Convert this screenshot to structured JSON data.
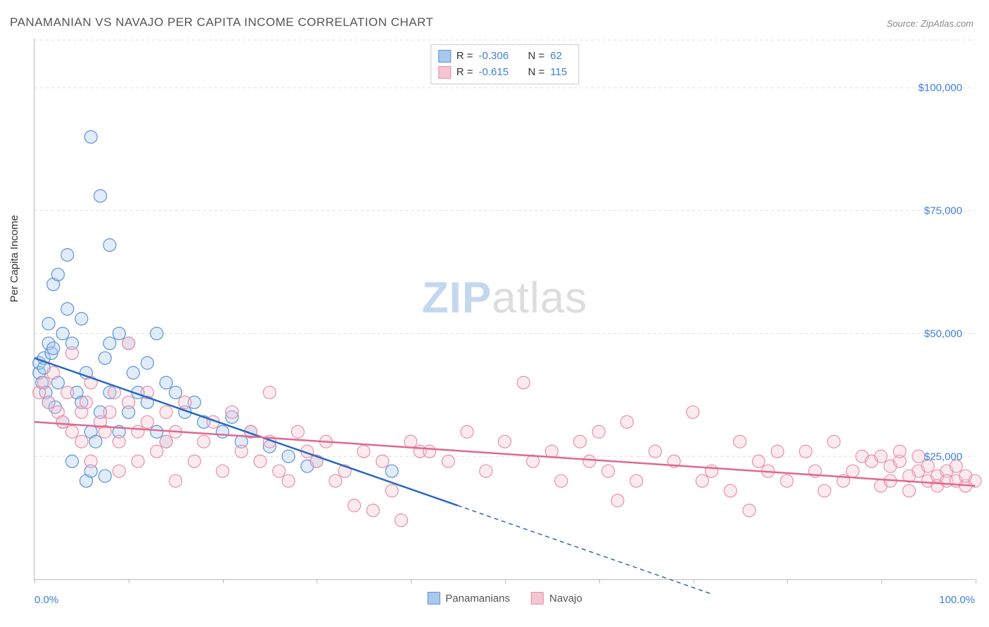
{
  "title": "PANAMANIAN VS NAVAJO PER CAPITA INCOME CORRELATION CHART",
  "source": "Source: ZipAtlas.com",
  "ylabel": "Per Capita Income",
  "watermark_zip": "ZIP",
  "watermark_atlas": "atlas",
  "chart": {
    "type": "scatter",
    "background_color": "#ffffff",
    "grid_color": "#dddddd",
    "axis_color": "#bbbbbb",
    "tick_label_color": "#3f7fd8",
    "xlim": [
      0,
      100
    ],
    "ylim": [
      0,
      110000
    ],
    "yticks": [
      25000,
      50000,
      75000,
      100000
    ],
    "ytick_labels": [
      "$25,000",
      "$50,000",
      "$75,000",
      "$100,000"
    ],
    "xticks": [
      0,
      10,
      20,
      30,
      40,
      50,
      60,
      70,
      80,
      90,
      100
    ],
    "xtick_labels_shown": {
      "0": "0.0%",
      "100": "100.0%"
    },
    "marker_radius": 9,
    "marker_fill_opacity": 0.35,
    "marker_stroke_width": 1.2,
    "trend_line_width": 2.5,
    "series": [
      {
        "name": "Panamanians",
        "color_fill": "#a9c8ed",
        "color_stroke": "#5a93d8",
        "trend_color": "#2968c0",
        "R": "-0.306",
        "N": "62",
        "trend": {
          "x1": 0,
          "y1": 45000,
          "x2_solid": 45,
          "y2_solid": 15000,
          "x2_dash": 72,
          "y2_dash": -3000
        },
        "points": [
          [
            0.5,
            42000
          ],
          [
            0.5,
            44000
          ],
          [
            0.8,
            40000
          ],
          [
            1,
            45000
          ],
          [
            1,
            43000
          ],
          [
            1.2,
            38000
          ],
          [
            1.5,
            36000
          ],
          [
            1.5,
            48000
          ],
          [
            1.5,
            52000
          ],
          [
            1.8,
            46000
          ],
          [
            2,
            47000
          ],
          [
            2,
            60000
          ],
          [
            2.2,
            35000
          ],
          [
            2.5,
            62000
          ],
          [
            2.5,
            40000
          ],
          [
            3,
            50000
          ],
          [
            3,
            32000
          ],
          [
            3.5,
            55000
          ],
          [
            3.5,
            66000
          ],
          [
            4,
            48000
          ],
          [
            4,
            24000
          ],
          [
            4.5,
            38000
          ],
          [
            5,
            53000
          ],
          [
            5,
            36000
          ],
          [
            5.5,
            20000
          ],
          [
            5.5,
            42000
          ],
          [
            6,
            90000
          ],
          [
            6,
            30000
          ],
          [
            6,
            22000
          ],
          [
            6.5,
            28000
          ],
          [
            7,
            78000
          ],
          [
            7,
            34000
          ],
          [
            7.5,
            45000
          ],
          [
            7.5,
            21000
          ],
          [
            8,
            68000
          ],
          [
            8,
            38000
          ],
          [
            8,
            48000
          ],
          [
            9,
            50000
          ],
          [
            9,
            30000
          ],
          [
            10,
            48000
          ],
          [
            10,
            34000
          ],
          [
            10.5,
            42000
          ],
          [
            11,
            38000
          ],
          [
            12,
            36000
          ],
          [
            12,
            44000
          ],
          [
            13,
            50000
          ],
          [
            13,
            30000
          ],
          [
            14,
            40000
          ],
          [
            14,
            28000
          ],
          [
            15,
            38000
          ],
          [
            16,
            34000
          ],
          [
            17,
            36000
          ],
          [
            18,
            32000
          ],
          [
            20,
            30000
          ],
          [
            21,
            33000
          ],
          [
            22,
            28000
          ],
          [
            23,
            30000
          ],
          [
            25,
            27000
          ],
          [
            27,
            25000
          ],
          [
            29,
            23000
          ],
          [
            30,
            24000
          ],
          [
            38,
            22000
          ]
        ]
      },
      {
        "name": "Navajo",
        "color_fill": "#f4c6d2",
        "color_stroke": "#e88fa8",
        "trend_color": "#e06890",
        "R": "-0.615",
        "N": "115",
        "trend": {
          "x1": 0,
          "y1": 32000,
          "x2_solid": 100,
          "y2_solid": 19000,
          "x2_dash": 100,
          "y2_dash": 19000
        },
        "points": [
          [
            0.5,
            38000
          ],
          [
            1,
            40000
          ],
          [
            1.5,
            36000
          ],
          [
            2,
            42000
          ],
          [
            2.5,
            34000
          ],
          [
            3,
            32000
          ],
          [
            3.5,
            38000
          ],
          [
            4,
            46000
          ],
          [
            4,
            30000
          ],
          [
            5,
            34000
          ],
          [
            5,
            28000
          ],
          [
            5.5,
            36000
          ],
          [
            6,
            40000
          ],
          [
            6,
            24000
          ],
          [
            7,
            32000
          ],
          [
            7.5,
            30000
          ],
          [
            8,
            34000
          ],
          [
            8.5,
            38000
          ],
          [
            9,
            28000
          ],
          [
            9,
            22000
          ],
          [
            10,
            36000
          ],
          [
            10,
            48000
          ],
          [
            11,
            30000
          ],
          [
            11,
            24000
          ],
          [
            12,
            32000
          ],
          [
            12,
            38000
          ],
          [
            13,
            26000
          ],
          [
            14,
            28000
          ],
          [
            14,
            34000
          ],
          [
            15,
            30000
          ],
          [
            15,
            20000
          ],
          [
            16,
            36000
          ],
          [
            17,
            24000
          ],
          [
            18,
            28000
          ],
          [
            19,
            32000
          ],
          [
            20,
            22000
          ],
          [
            21,
            34000
          ],
          [
            22,
            26000
          ],
          [
            23,
            30000
          ],
          [
            24,
            24000
          ],
          [
            25,
            28000
          ],
          [
            25,
            38000
          ],
          [
            26,
            22000
          ],
          [
            27,
            20000
          ],
          [
            28,
            30000
          ],
          [
            29,
            26000
          ],
          [
            30,
            24000
          ],
          [
            31,
            28000
          ],
          [
            32,
            20000
          ],
          [
            33,
            22000
          ],
          [
            34,
            15000
          ],
          [
            35,
            26000
          ],
          [
            36,
            14000
          ],
          [
            37,
            24000
          ],
          [
            38,
            18000
          ],
          [
            39,
            12000
          ],
          [
            40,
            28000
          ],
          [
            41,
            26000
          ],
          [
            42,
            26000
          ],
          [
            44,
            24000
          ],
          [
            46,
            30000
          ],
          [
            48,
            22000
          ],
          [
            50,
            28000
          ],
          [
            52,
            40000
          ],
          [
            53,
            24000
          ],
          [
            55,
            26000
          ],
          [
            56,
            20000
          ],
          [
            58,
            28000
          ],
          [
            59,
            24000
          ],
          [
            60,
            30000
          ],
          [
            61,
            22000
          ],
          [
            62,
            16000
          ],
          [
            63,
            32000
          ],
          [
            64,
            20000
          ],
          [
            66,
            26000
          ],
          [
            68,
            24000
          ],
          [
            70,
            34000
          ],
          [
            71,
            20000
          ],
          [
            72,
            22000
          ],
          [
            74,
            18000
          ],
          [
            75,
            28000
          ],
          [
            76,
            14000
          ],
          [
            77,
            24000
          ],
          [
            78,
            22000
          ],
          [
            79,
            26000
          ],
          [
            80,
            20000
          ],
          [
            82,
            26000
          ],
          [
            83,
            22000
          ],
          [
            84,
            18000
          ],
          [
            85,
            28000
          ],
          [
            86,
            20000
          ],
          [
            87,
            22000
          ],
          [
            88,
            25000
          ],
          [
            89,
            24000
          ],
          [
            90,
            25000
          ],
          [
            90,
            19000
          ],
          [
            91,
            23000
          ],
          [
            91,
            20000
          ],
          [
            92,
            24000
          ],
          [
            92,
            26000
          ],
          [
            93,
            21000
          ],
          [
            93,
            18000
          ],
          [
            94,
            22000
          ],
          [
            94,
            25000
          ],
          [
            95,
            20000
          ],
          [
            95,
            23000
          ],
          [
            96,
            21000
          ],
          [
            96,
            19000
          ],
          [
            97,
            22000
          ],
          [
            97,
            20000
          ],
          [
            98,
            20000
          ],
          [
            98,
            23000
          ],
          [
            99,
            19000
          ],
          [
            99,
            21000
          ],
          [
            100,
            20000
          ]
        ]
      }
    ]
  }
}
